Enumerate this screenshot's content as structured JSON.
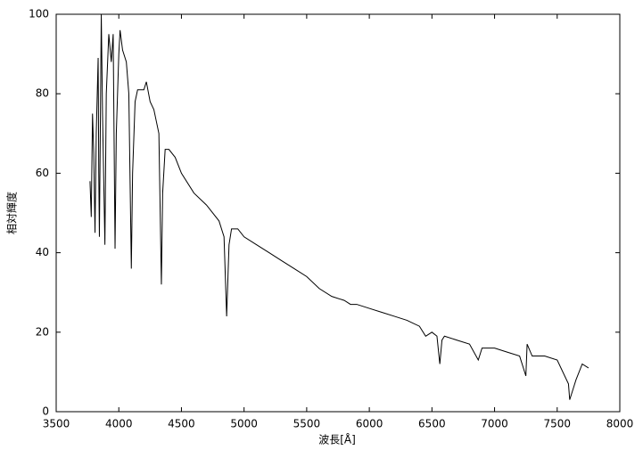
{
  "chart_data": {
    "type": "line",
    "x_label": "波長[Å]",
    "y_label": "相対輝度",
    "xlim": [
      3500,
      8000
    ],
    "ylim": [
      0,
      100
    ],
    "xticks": [
      3500,
      4000,
      4500,
      5000,
      5500,
      6000,
      6500,
      7000,
      7500,
      8000
    ],
    "yticks": [
      0,
      20,
      40,
      60,
      80,
      100
    ],
    "color": "#000000",
    "x": [
      3770,
      3780,
      3790,
      3800,
      3810,
      3820,
      3835,
      3840,
      3845,
      3860,
      3870,
      3889,
      3900,
      3920,
      3940,
      3955,
      3970,
      3980,
      4000,
      4010,
      4030,
      4060,
      4080,
      4100,
      4110,
      4130,
      4150,
      4200,
      4220,
      4250,
      4280,
      4300,
      4320,
      4340,
      4350,
      4370,
      4400,
      4450,
      4500,
      4600,
      4700,
      4800,
      4840,
      4861,
      4880,
      4900,
      4950,
      5000,
      5100,
      5200,
      5300,
      5400,
      5500,
      5600,
      5700,
      5800,
      5850,
      5900,
      6000,
      6100,
      6200,
      6300,
      6400,
      6450,
      6500,
      6540,
      6563,
      6580,
      6600,
      6700,
      6800,
      6870,
      6900,
      7000,
      7100,
      7200,
      7250,
      7260,
      7300,
      7400,
      7500,
      7590,
      7600,
      7630,
      7650,
      7700,
      7750
    ],
    "values": [
      58,
      49,
      75,
      65,
      45,
      70,
      89,
      60,
      44,
      100,
      75,
      42,
      80,
      95,
      88,
      95,
      41,
      70,
      90,
      96,
      91,
      88,
      80,
      36,
      60,
      78,
      81,
      81,
      83,
      78,
      76,
      73,
      70,
      32,
      55,
      66,
      66,
      64,
      60,
      55,
      52,
      48,
      44,
      24,
      42,
      46,
      46,
      44,
      42,
      40,
      38,
      36,
      34,
      31,
      29,
      28,
      27,
      27,
      26,
      25,
      24,
      23,
      21.5,
      19,
      20,
      19,
      12,
      18,
      19,
      18,
      17,
      13,
      16,
      16,
      15,
      14,
      9,
      17,
      14,
      14,
      13,
      7,
      3,
      6,
      8,
      12,
      11
    ]
  }
}
